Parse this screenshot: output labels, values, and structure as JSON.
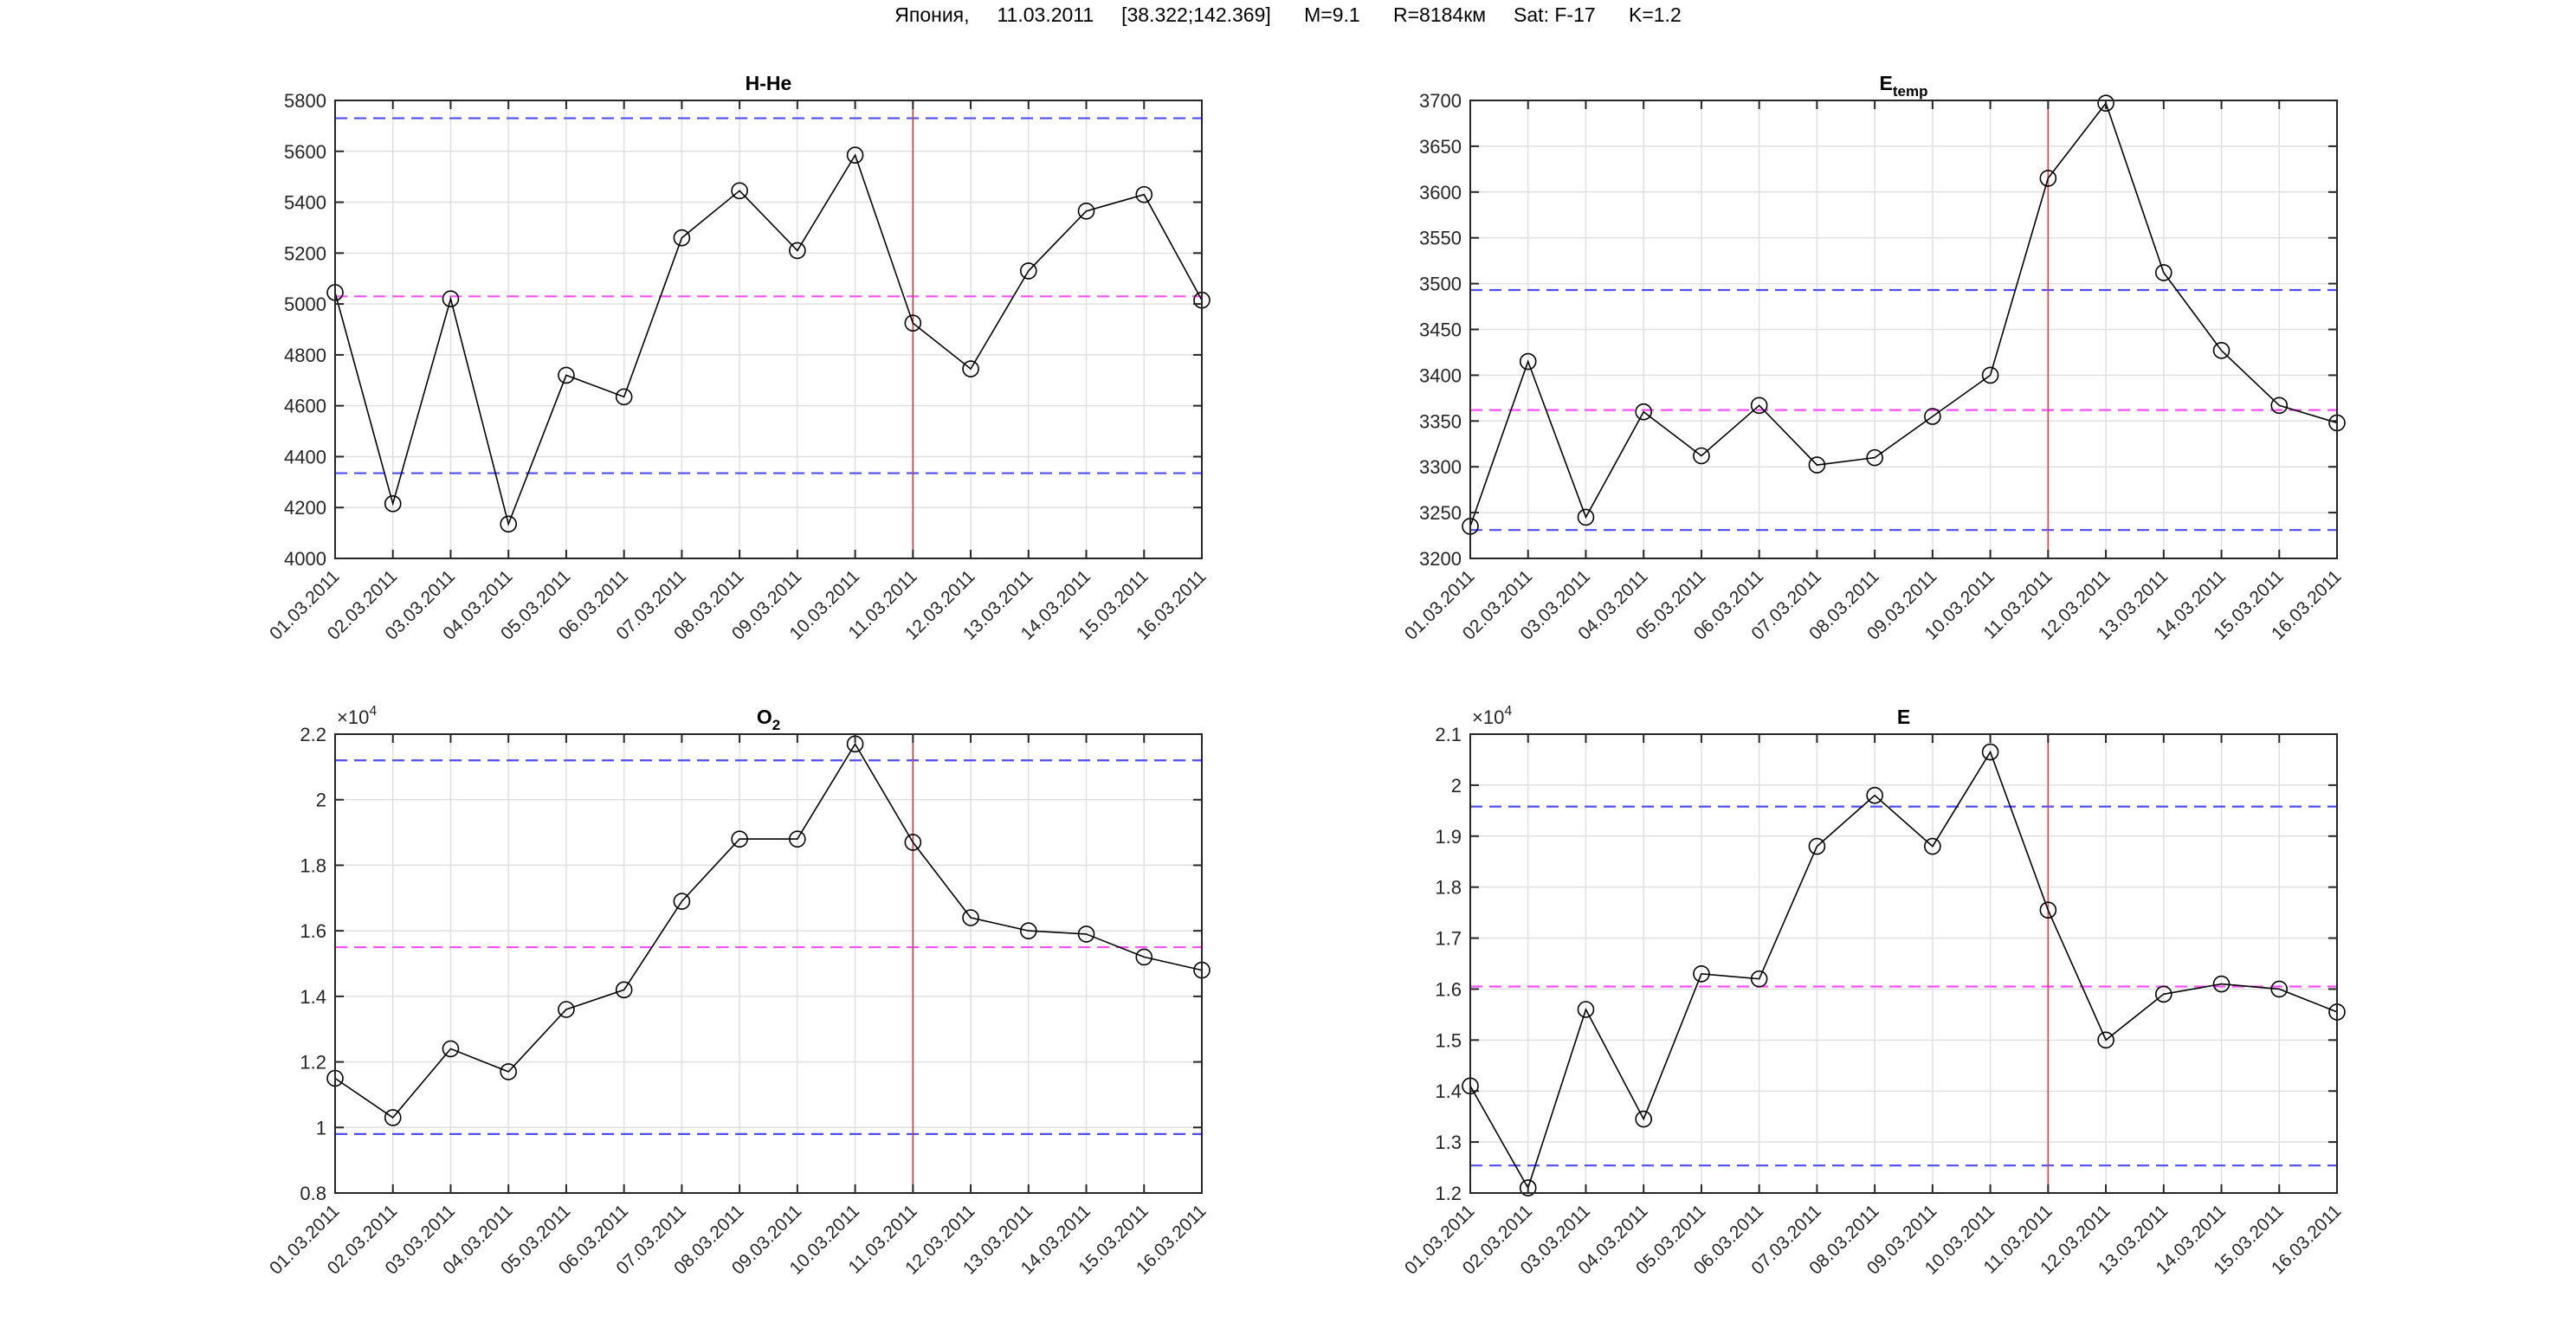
{
  "figure_title": "Япония,     11.03.2011     [38.322;142.369]      M=9.1      R=8184км     Sat: F-17      K=1.2",
  "colors": {
    "series": "#000000",
    "bound": "#4d4dff",
    "mean": "#ff4dff",
    "event": "#ff3030",
    "grid": "#e0e0e0"
  },
  "chart_data": [
    {
      "type": "line",
      "title": "H-He",
      "title_sub": "",
      "exponent": "",
      "categories": [
        "01.03.2011",
        "02.03.2011",
        "03.03.2011",
        "04.03.2011",
        "05.03.2011",
        "06.03.2011",
        "07.03.2011",
        "08.03.2011",
        "09.03.2011",
        "10.03.2011",
        "11.03.2011",
        "12.03.2011",
        "13.03.2011",
        "14.03.2011",
        "15.03.2011",
        "16.03.2011"
      ],
      "values": [
        5045,
        4215,
        5020,
        4135,
        4720,
        4635,
        5260,
        5445,
        5210,
        5585,
        4925,
        4745,
        5130,
        5365,
        5430,
        5015
      ],
      "ylim": [
        4000,
        5800
      ],
      "yticks": [
        4000,
        4200,
        4400,
        4600,
        4800,
        5000,
        5200,
        5400,
        5600,
        5800
      ],
      "ytick_labels": [
        "4000",
        "4200",
        "4400",
        "4600",
        "4800",
        "5000",
        "5200",
        "5400",
        "5600",
        "5800"
      ],
      "upper": 5730,
      "mean": 5030,
      "lower": 4335,
      "event_index": 10
    },
    {
      "type": "line",
      "title": "E",
      "title_sub": "temp",
      "exponent": "",
      "categories": [
        "01.03.2011",
        "02.03.2011",
        "03.03.2011",
        "04.03.2011",
        "05.03.2011",
        "06.03.2011",
        "07.03.2011",
        "08.03.2011",
        "09.03.2011",
        "10.03.2011",
        "11.03.2011",
        "12.03.2011",
        "13.03.2011",
        "14.03.2011",
        "15.03.2011",
        "16.03.2011"
      ],
      "values": [
        3235,
        3415,
        3245,
        3360,
        3312,
        3367,
        3302,
        3310,
        3355,
        3400,
        3615,
        3697,
        3512,
        3427,
        3367,
        3348
      ],
      "ylim": [
        3200,
        3700
      ],
      "yticks": [
        3200,
        3250,
        3300,
        3350,
        3400,
        3450,
        3500,
        3550,
        3600,
        3650,
        3700
      ],
      "ytick_labels": [
        "3200",
        "3250",
        "3300",
        "3350",
        "3400",
        "3450",
        "3500",
        "3550",
        "3600",
        "3650",
        "3700"
      ],
      "upper": 3493,
      "mean": 3362,
      "lower": 3231,
      "event_index": 10
    },
    {
      "type": "line",
      "title": "O",
      "title_sub": "2",
      "exponent": "4",
      "categories": [
        "01.03.2011",
        "02.03.2011",
        "03.03.2011",
        "04.03.2011",
        "05.03.2011",
        "06.03.2011",
        "07.03.2011",
        "08.03.2011",
        "09.03.2011",
        "10.03.2011",
        "11.03.2011",
        "12.03.2011",
        "13.03.2011",
        "14.03.2011",
        "15.03.2011",
        "16.03.2011"
      ],
      "values": [
        11500,
        10300,
        12400,
        11700,
        13600,
        14200,
        16900,
        18800,
        18800,
        21700,
        18700,
        16400,
        16000,
        15900,
        15200,
        14800
      ],
      "ylim": [
        8000,
        22000
      ],
      "yticks": [
        8000,
        10000,
        12000,
        14000,
        16000,
        18000,
        20000,
        22000
      ],
      "ytick_labels": [
        "0.8",
        "1",
        "1.2",
        "1.4",
        "1.6",
        "1.8",
        "2",
        "2.2"
      ],
      "upper": 21200,
      "mean": 15500,
      "lower": 9800,
      "event_index": 10
    },
    {
      "type": "line",
      "title": "E",
      "title_sub": "",
      "exponent": "4",
      "categories": [
        "01.03.2011",
        "02.03.2011",
        "03.03.2011",
        "04.03.2011",
        "05.03.2011",
        "06.03.2011",
        "07.03.2011",
        "08.03.2011",
        "09.03.2011",
        "10.03.2011",
        "11.03.2011",
        "12.03.2011",
        "13.03.2011",
        "14.03.2011",
        "15.03.2011",
        "16.03.2011"
      ],
      "values": [
        14100,
        12100,
        15600,
        13450,
        16300,
        16200,
        18800,
        19800,
        18800,
        20650,
        17550,
        15000,
        15900,
        16100,
        16000,
        15550
      ],
      "ylim": [
        12000,
        21000
      ],
      "yticks": [
        12000,
        13000,
        14000,
        15000,
        16000,
        17000,
        18000,
        19000,
        20000,
        21000
      ],
      "ytick_labels": [
        "1.2",
        "1.3",
        "1.4",
        "1.5",
        "1.6",
        "1.7",
        "1.8",
        "1.9",
        "2",
        "2.1"
      ],
      "upper": 19580,
      "mean": 16050,
      "lower": 12540,
      "event_index": 10
    }
  ]
}
